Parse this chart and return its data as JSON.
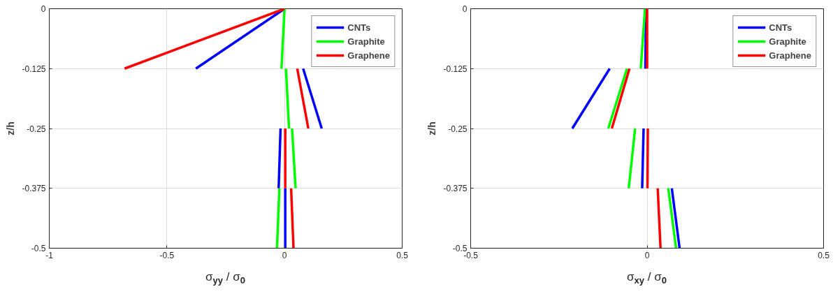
{
  "chart_data": [
    {
      "type": "line",
      "xlabel": "σ$_{yy}$ / σ$_{0}$",
      "ylabel": "z/h",
      "xlim": [
        -1,
        0.5
      ],
      "xticks": [
        -1,
        -0.5,
        0,
        0.5
      ],
      "ylim": [
        -0.5,
        0
      ],
      "yticks": [
        -0.5,
        -0.375,
        -0.25,
        -0.125,
        0
      ],
      "grid": true,
      "legend": "top right",
      "marker": "none",
      "line_style": "solid",
      "series": [
        {
          "name": "CNTs",
          "color": "#0000ff",
          "x": [
            0,
            -0.377,
            null,
            0.079,
            0.158,
            null,
            -0.017,
            -0.025,
            null,
            0.003,
            0.003
          ],
          "values": [
            0,
            -0.125,
            null,
            -0.125,
            -0.25,
            null,
            -0.25,
            -0.375,
            null,
            -0.375,
            -0.5
          ]
        },
        {
          "name": "Graphite",
          "color": "#00ff00",
          "x": [
            0,
            -0.013,
            null,
            0.006,
            0.019,
            null,
            0.032,
            0.047,
            null,
            -0.022,
            -0.032
          ],
          "values": [
            0,
            -0.125,
            null,
            -0.125,
            -0.25,
            null,
            -0.25,
            -0.375,
            null,
            -0.375,
            -0.5
          ]
        },
        {
          "name": "Graphene",
          "color": "#ff0000",
          "x": [
            0,
            -0.68,
            null,
            0.054,
            0.101,
            null,
            0.003,
            0.003,
            null,
            0.028,
            0.038
          ],
          "values": [
            0,
            -0.125,
            null,
            -0.125,
            -0.25,
            null,
            -0.25,
            -0.375,
            null,
            -0.375,
            -0.5
          ]
        }
      ]
    },
    {
      "type": "line",
      "xlabel": "σ$_{xy}$ / σ$_{0}$",
      "ylabel": "z/h",
      "xlim": [
        -0.5,
        0.5
      ],
      "xticks": [
        -0.5,
        0,
        0.5
      ],
      "ylim": [
        -0.5,
        0
      ],
      "yticks": [
        -0.5,
        -0.375,
        -0.25,
        -0.125,
        0
      ],
      "grid": true,
      "legend": "top right",
      "marker": "none",
      "line_style": "solid",
      "series": [
        {
          "name": "CNTs",
          "color": "#0000ff",
          "x": [
            -0.003,
            -0.005,
            null,
            -0.106,
            -0.212,
            null,
            -0.01,
            -0.014,
            null,
            0.07,
            0.092
          ],
          "values": [
            0,
            -0.125,
            null,
            -0.125,
            -0.25,
            null,
            -0.25,
            -0.375,
            null,
            -0.375,
            -0.5
          ]
        },
        {
          "name": "Graphite",
          "color": "#00ff00",
          "x": [
            -0.006,
            -0.018,
            null,
            -0.057,
            -0.11,
            null,
            -0.034,
            -0.052,
            null,
            0.06,
            0.082
          ],
          "values": [
            0,
            -0.125,
            null,
            -0.125,
            -0.25,
            null,
            -0.25,
            -0.375,
            null,
            -0.375,
            -0.5
          ]
        },
        {
          "name": "Graphene",
          "color": "#ff0000",
          "x": [
            0,
            0,
            null,
            -0.05,
            -0.1,
            null,
            0.002,
            0.001,
            null,
            0.03,
            0.038
          ],
          "values": [
            0,
            -0.125,
            null,
            -0.125,
            -0.25,
            null,
            -0.25,
            -0.375,
            null,
            -0.375,
            -0.5
          ]
        }
      ]
    }
  ]
}
